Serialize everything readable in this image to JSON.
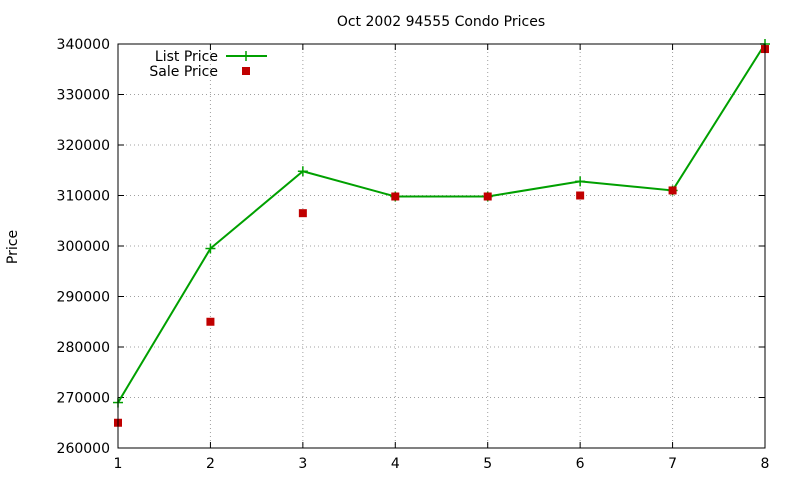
{
  "chart_data": {
    "type": "line",
    "title": "Oct 2002 94555 Condo Prices",
    "xlabel": "",
    "ylabel": "Price",
    "x": [
      1,
      2,
      3,
      4,
      5,
      6,
      7,
      8
    ],
    "xlim": [
      1,
      8
    ],
    "ylim": [
      260000,
      340000
    ],
    "xticks": [
      "1",
      "2",
      "3",
      "4",
      "5",
      "6",
      "7",
      "8"
    ],
    "yticks": [
      "260000",
      "270000",
      "280000",
      "290000",
      "300000",
      "310000",
      "320000",
      "330000",
      "340000"
    ],
    "grid": true,
    "legend_position": "top-left",
    "series": [
      {
        "name": "List Price",
        "style": "lines+points",
        "marker": "plus",
        "color": "#00a000",
        "values": [
          269000,
          299500,
          314800,
          309800,
          309800,
          312800,
          311000,
          340000
        ]
      },
      {
        "name": "Sale Price",
        "style": "points",
        "marker": "square",
        "color": "#c00000",
        "values": [
          265000,
          285000,
          306500,
          309800,
          309800,
          310000,
          311000,
          339000
        ]
      }
    ]
  }
}
